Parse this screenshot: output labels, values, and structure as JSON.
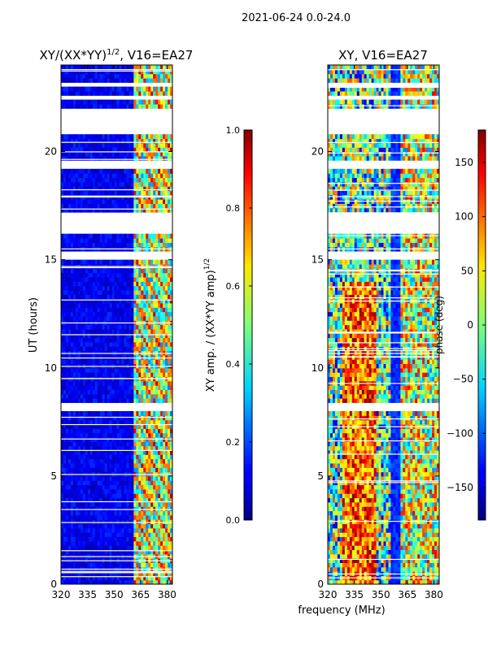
{
  "suptitle": "2021-06-24 0.0-24.0",
  "xlabel_shared": "frequency (MHz)",
  "chart_data": [
    {
      "type": "heatmap",
      "title_main": "XY/(XX*YY)",
      "title_sup": "1/2",
      "title_tail": ", V16=EA27",
      "xlabel": "frequency (MHz)",
      "ylabel": "UT (hours)",
      "xlim": [
        320,
        383
      ],
      "ylim": [
        0,
        24
      ],
      "xticks": [
        320,
        335,
        350,
        365,
        380
      ],
      "yticks": [
        0,
        5,
        10,
        15,
        20
      ],
      "colorbar": {
        "label_main": "XY amp. / (XX*YY amp)",
        "label_sup": "1/2",
        "range": [
          0.0,
          1.0
        ],
        "ticks": [
          "0.0",
          "0.2",
          "0.4",
          "0.6",
          "0.8",
          "1.0"
        ],
        "tick_values": [
          0.0,
          0.2,
          0.4,
          0.6,
          0.8,
          1.0
        ]
      },
      "gap_rows_hours": [
        [
          20.9,
          22.0
        ],
        [
          19.2,
          19.6
        ],
        [
          16.3,
          17.2
        ],
        [
          15.1,
          15.3
        ],
        [
          8.1,
          8.4
        ],
        [
          22.4,
          22.6
        ],
        [
          23.1,
          23.3
        ]
      ],
      "bright_band_mhz": [
        361,
        382
      ]
    },
    {
      "type": "heatmap",
      "title": "XY, V16=EA27",
      "xlabel": "frequency (MHz)",
      "ylabel": "",
      "xlim": [
        320,
        383
      ],
      "ylim": [
        0,
        24
      ],
      "xticks": [
        320,
        335,
        350,
        365,
        380
      ],
      "yticks": [
        0,
        5,
        10,
        15,
        20
      ],
      "colorbar": {
        "label": "phase (deg)",
        "range": [
          -180,
          180
        ],
        "ticks": [
          "150",
          "100",
          "50",
          "0",
          "−50",
          "−100",
          "−150"
        ],
        "tick_values": [
          150,
          100,
          50,
          0,
          -50,
          -100,
          -150
        ]
      },
      "gap_rows_hours": [
        [
          20.9,
          22.0
        ],
        [
          19.2,
          19.6
        ],
        [
          16.3,
          17.2
        ],
        [
          15.1,
          15.3
        ],
        [
          8.1,
          8.4
        ],
        [
          22.4,
          22.6
        ],
        [
          23.1,
          23.3
        ]
      ]
    }
  ],
  "colors": {
    "jet_low": "#00007f",
    "jet_high": "#7f0000",
    "gap": "#ffffff"
  }
}
